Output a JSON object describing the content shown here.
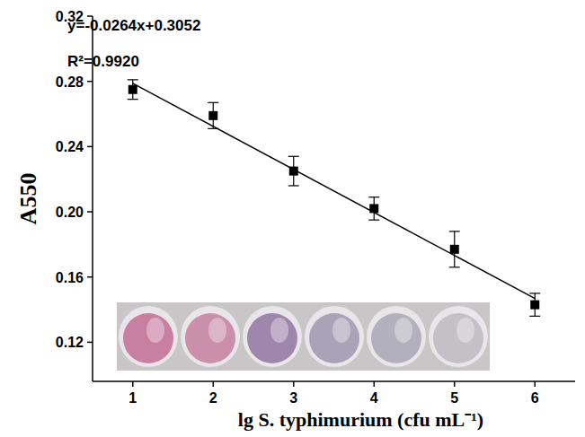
{
  "chart_data": {
    "type": "scatter",
    "x_label": "lg S. typhimurium (cfu mL⁻¹)",
    "y_label": "A550",
    "annotations": [
      "y=-0.0264x+0.3052",
      "R²=0.9920"
    ],
    "xlim": [
      0.5,
      6.5
    ],
    "xticks": [
      1,
      2,
      3,
      4,
      5,
      6
    ],
    "ylim": [
      0.096,
      0.32
    ],
    "yticks": [
      0.12,
      0.16,
      {
        "value": 0.2,
        "label": "0.20"
      },
      0.24,
      0.28,
      0.32
    ],
    "grid": false,
    "series": [
      {
        "type": "scatter",
        "marker": "square",
        "color": "#000000",
        "x": [
          1,
          2,
          3,
          4,
          5,
          6
        ],
        "values": [
          0.275,
          0.259,
          0.225,
          0.202,
          0.177,
          0.143
        ],
        "errors": [
          0.006,
          0.008,
          0.009,
          0.007,
          0.011,
          0.007
        ]
      },
      {
        "type": "line",
        "line_style": "solid",
        "color": "#000000",
        "x": [
          1,
          6
        ],
        "values": [
          0.2788,
          0.1468
        ]
      }
    ]
  }
}
